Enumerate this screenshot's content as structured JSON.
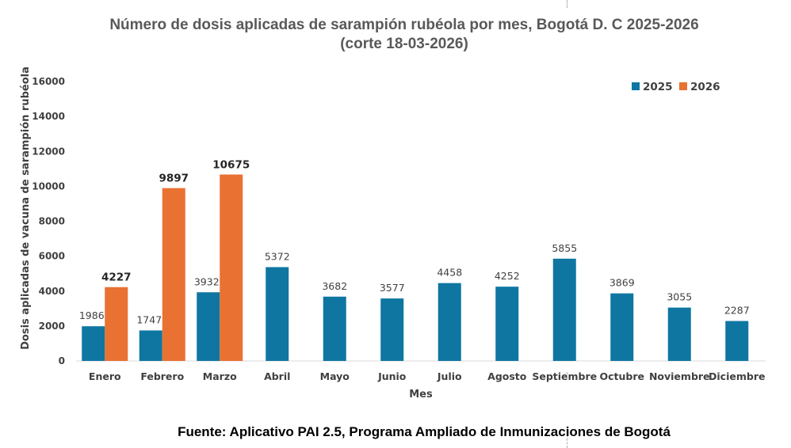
{
  "chart_data": {
    "type": "bar",
    "title": "Número de dosis aplicadas de sarampión rubéola por mes, Bogotá D. C 2025-2026",
    "subtitle": "(corte 18-03-2026)",
    "xlabel": "Mes",
    "ylabel": "Dosis aplicadas de vacuna de sarampión rubéola",
    "ylim": [
      0,
      16000
    ],
    "yticks": [
      0,
      2000,
      4000,
      6000,
      8000,
      10000,
      12000,
      14000,
      16000
    ],
    "grid": false,
    "legend_position": "top-right",
    "categories": [
      "Enero",
      "Febrero",
      "Marzo",
      "Abril",
      "Mayo",
      "Junio",
      "Julio",
      "Agosto",
      "Septiembre",
      "Octubre",
      "Noviembre",
      "Diciembre"
    ],
    "series": [
      {
        "name": "2025",
        "color": "#0E76A1",
        "values": [
          1986,
          1747,
          3932,
          5372,
          3682,
          3577,
          4458,
          4252,
          5855,
          3869,
          3055,
          2287
        ]
      },
      {
        "name": "2026",
        "color": "#E97132",
        "values": [
          4227,
          9897,
          10675,
          null,
          null,
          null,
          null,
          null,
          null,
          null,
          null,
          null
        ]
      }
    ]
  },
  "source_note": "Fuente: Aplicativo PAI 2.5, Programa Ampliado de Inmunizaciones de Bogotá"
}
